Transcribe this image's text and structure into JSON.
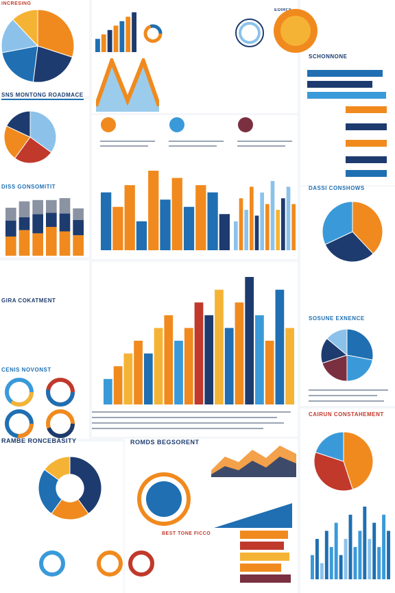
{
  "colors": {
    "navy": "#1d3b6e",
    "blue": "#1f6fb2",
    "sky": "#3a9ad9",
    "lightblue": "#8cc2ea",
    "orange": "#f08a1e",
    "amber": "#f5b335",
    "red": "#c0392b",
    "maroon": "#7a3040",
    "grey": "#8b93a3",
    "page": "#f4f6f9"
  },
  "headings": {
    "top_left_small": "INCRESING",
    "top_left_banner": "SNS MONTONG ROADMACE",
    "left_mid_banner": "DISS GONSOMITIT",
    "left_lower_banner": "GIRA COKATMENT",
    "left_donut_banner": "CENIS NOVONST",
    "left_bottom_title": "RAMBE RONCEBASITY",
    "right_top_banner": "SCHONNONE",
    "right_mid_banner": "DASSI CONSHOWS",
    "right_pie_banner": "SOSUNE EXNENCE",
    "right_bottom_banner": "CAIRUN CONSTAHEMENT",
    "center_donut_title": "ROMDS BEGSORENT",
    "center_orange_tag": "BEST TONE FICCO",
    "circle_label": "EOIRCE"
  },
  "chart_data": [
    {
      "type": "pie",
      "values": [
        30,
        22,
        20,
        16,
        12
      ],
      "colors": [
        "#f08a1e",
        "#1d3b6e",
        "#1f6fb2",
        "#8cc2ea",
        "#f5b335"
      ]
    },
    {
      "type": "bar",
      "values": [
        3,
        4,
        5,
        6,
        7,
        8,
        9
      ]
    },
    {
      "type": "line",
      "values": [
        1,
        9,
        2,
        9,
        1
      ],
      "series_colors": [
        "#f08a1e",
        "#3a9ad9"
      ]
    },
    {
      "type": "pie",
      "values": [
        35,
        25,
        22,
        18
      ],
      "colors": [
        "#8cc2ea",
        "#c0392b",
        "#f08a1e",
        "#1d3b6e"
      ]
    },
    {
      "type": "bar",
      "categories": [
        "1",
        "2",
        "3",
        "4",
        "5",
        "6"
      ],
      "series": [
        {
          "values": [
            30,
            40,
            35,
            45,
            38,
            32
          ]
        },
        {
          "values": [
            25,
            20,
            30,
            22,
            28,
            24
          ]
        },
        {
          "values": [
            20,
            25,
            22,
            20,
            24,
            18
          ]
        }
      ]
    },
    {
      "type": "bar",
      "values": [
        8,
        6,
        9,
        4,
        11,
        7,
        10,
        6,
        9,
        8,
        5
      ]
    },
    {
      "type": "bar",
      "values": [
        5,
        9,
        7,
        11,
        6,
        10,
        8,
        12,
        7,
        9,
        11,
        8
      ]
    },
    {
      "type": "pie",
      "values": [
        38,
        30,
        32
      ],
      "colors": [
        "#f08a1e",
        "#1d3b6e",
        "#3a9ad9"
      ]
    },
    {
      "type": "bar",
      "values": [
        2,
        3,
        4,
        5,
        4,
        6,
        7,
        5,
        6,
        8,
        7,
        9,
        6,
        8,
        10,
        7,
        5,
        9,
        6
      ]
    },
    {
      "type": "pie",
      "values": [
        28,
        22,
        20,
        16,
        14
      ],
      "colors": [
        "#1f6fb2",
        "#3a9ad9",
        "#7a3040",
        "#1d3b6e",
        "#8cc2ea"
      ]
    },
    {
      "type": "pie",
      "values": [
        40,
        20,
        25,
        15
      ],
      "colors": [
        "#1d3b6e",
        "#f08a1e",
        "#1f6fb2",
        "#f5b335"
      ]
    },
    {
      "type": "pie",
      "values": [
        45,
        35,
        20
      ],
      "colors": [
        "#f08a1e",
        "#c0392b",
        "#3a9ad9"
      ]
    },
    {
      "type": "bar",
      "values": [
        3,
        5,
        2,
        6,
        4,
        7,
        3,
        5,
        8,
        4,
        6,
        9,
        5,
        7,
        4,
        8,
        6
      ]
    }
  ]
}
